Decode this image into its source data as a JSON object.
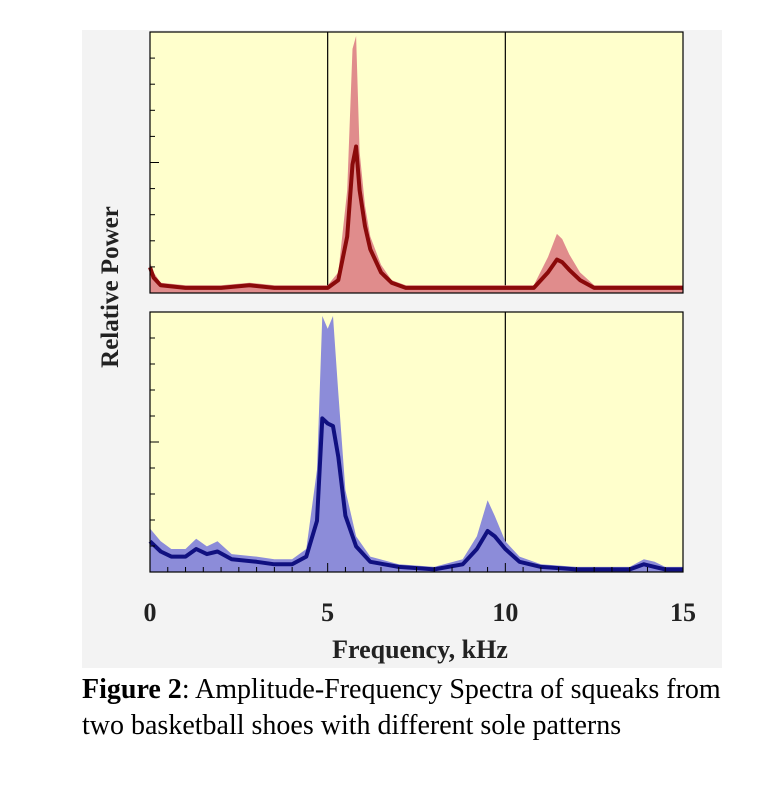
{
  "colors": {
    "panel_bg": "#ffffcc",
    "outer_bg": "#f3f3f3",
    "top_line": "#8b0a0a",
    "top_band": "#e08c8c",
    "bottom_line": "#101080",
    "bottom_band": "#8c8cd9",
    "axis": "#000000"
  },
  "chart_data": [
    {
      "type": "area",
      "panel": "top",
      "xlabel": "Frequency, kHz",
      "ylabel": "Relative Power",
      "xlim": [
        0,
        15
      ],
      "ylim": [
        0,
        1
      ],
      "xticks_major": [
        0,
        5,
        10,
        15
      ],
      "vertical_lines": [
        5,
        10
      ],
      "series": [
        {
          "x": [
            0,
            0.1,
            0.3,
            1,
            2,
            2.8,
            3.5,
            4.5,
            5.0,
            5.3,
            5.55,
            5.7,
            5.8,
            5.9,
            6.05,
            6.2,
            6.5,
            6.8,
            7.2,
            8,
            9,
            10,
            10.8,
            11.2,
            11.45,
            11.6,
            11.8,
            12.1,
            12.5,
            13,
            14,
            15
          ],
          "y": [
            0.1,
            0.06,
            0.03,
            0.02,
            0.02,
            0.03,
            0.02,
            0.02,
            0.02,
            0.05,
            0.22,
            0.5,
            0.57,
            0.4,
            0.26,
            0.17,
            0.08,
            0.04,
            0.02,
            0.02,
            0.02,
            0.02,
            0.02,
            0.08,
            0.13,
            0.12,
            0.09,
            0.05,
            0.02,
            0.02,
            0.02,
            0.02
          ],
          "upper": [
            0.12,
            0.08,
            0.04,
            0.03,
            0.03,
            0.04,
            0.03,
            0.03,
            0.03,
            0.08,
            0.4,
            0.95,
            1.0,
            0.55,
            0.34,
            0.22,
            0.11,
            0.05,
            0.03,
            0.03,
            0.03,
            0.03,
            0.03,
            0.14,
            0.23,
            0.21,
            0.15,
            0.08,
            0.03,
            0.03,
            0.03,
            0.03
          ]
        }
      ]
    },
    {
      "type": "area",
      "panel": "bottom",
      "xlabel": "Frequency, kHz",
      "ylabel": "Relative Power",
      "xlim": [
        0,
        15
      ],
      "ylim": [
        0,
        1
      ],
      "xticks_major": [
        0,
        5,
        10,
        15
      ],
      "vertical_lines": [
        10
      ],
      "series": [
        {
          "x": [
            0,
            0.3,
            0.6,
            1.0,
            1.3,
            1.6,
            1.9,
            2.3,
            3,
            3.5,
            4.0,
            4.4,
            4.7,
            4.85,
            5.0,
            5.15,
            5.3,
            5.5,
            5.8,
            6.2,
            7,
            8,
            8.8,
            9.2,
            9.5,
            9.7,
            10.0,
            10.4,
            11,
            12,
            13.5,
            13.9,
            14.2,
            14.5,
            15
          ],
          "y": [
            0.12,
            0.08,
            0.06,
            0.06,
            0.09,
            0.07,
            0.08,
            0.05,
            0.04,
            0.03,
            0.03,
            0.06,
            0.2,
            0.6,
            0.58,
            0.57,
            0.45,
            0.22,
            0.1,
            0.04,
            0.02,
            0.01,
            0.03,
            0.09,
            0.16,
            0.14,
            0.09,
            0.04,
            0.02,
            0.01,
            0.01,
            0.03,
            0.02,
            0.01,
            0.01
          ],
          "upper": [
            0.17,
            0.12,
            0.09,
            0.09,
            0.13,
            0.1,
            0.12,
            0.07,
            0.06,
            0.05,
            0.05,
            0.09,
            0.4,
            1.0,
            0.95,
            1.0,
            0.7,
            0.32,
            0.14,
            0.06,
            0.03,
            0.02,
            0.05,
            0.14,
            0.28,
            0.22,
            0.12,
            0.06,
            0.03,
            0.02,
            0.02,
            0.05,
            0.04,
            0.02,
            0.02
          ]
        }
      ]
    }
  ],
  "labels": {
    "ylabel": "Relative Power",
    "xlabel": "Frequency, kHz",
    "ticks": [
      "0",
      "5",
      "10",
      "15"
    ]
  },
  "caption": {
    "figure_label": "Figure 2",
    "text": ": Amplitude-Frequency Spectra of squeaks from two basketball shoes with different sole patterns"
  }
}
